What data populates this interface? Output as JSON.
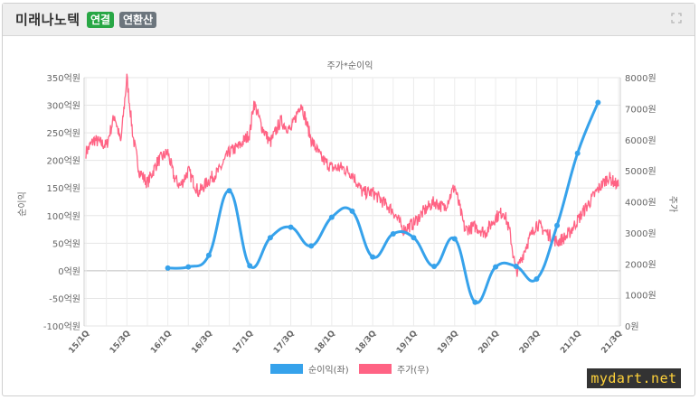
{
  "header": {
    "company": "미래나노텍",
    "badge_consolidated": "연결",
    "badge_consolidated_color": "#28a745",
    "badge_converted": "연환산",
    "badge_converted_color": "#6c757d",
    "expand_icon": "expand-icon"
  },
  "watermark": "mydart.net",
  "chart_data": {
    "type": "line",
    "title": "주가*순이익",
    "y_left_label": "순이익",
    "y_right_label": "주가",
    "y_left_ticks": [
      "350억원",
      "300억원",
      "250억원",
      "200억원",
      "150억원",
      "100억원",
      "50억원",
      "0억원",
      "-50억원",
      "-100억원"
    ],
    "y_right_ticks": [
      "8000원",
      "7000원",
      "6000원",
      "5000원",
      "4000원",
      "3000원",
      "2000원",
      "1000원",
      "0원"
    ],
    "ylim_left": [
      -100,
      350
    ],
    "ylim_right": [
      0,
      8000
    ],
    "x_ticks": [
      "15/1Q",
      "15/3Q",
      "16/1Q",
      "16/3Q",
      "17/1Q",
      "17/3Q",
      "18/1Q",
      "18/3Q",
      "19/1Q",
      "19/3Q",
      "20/1Q",
      "20/3Q",
      "21/1Q",
      "21/3Q"
    ],
    "grid": true,
    "legend_position": "bottom",
    "series": [
      {
        "name": "순이익(좌)",
        "axis": "left",
        "color": "#36a2eb",
        "x": [
          "16/1Q",
          "16/2Q",
          "16/3Q",
          "16/4Q",
          "17/1Q",
          "17/2Q",
          "17/3Q",
          "17/4Q",
          "18/1Q",
          "18/2Q",
          "18/3Q",
          "18/4Q",
          "19/1Q",
          "19/2Q",
          "19/3Q",
          "19/4Q",
          "20/1Q",
          "20/2Q",
          "20/3Q",
          "20/4Q",
          "21/1Q",
          "21/2Q"
        ],
        "values": [
          5,
          7,
          28,
          145,
          9,
          60,
          79,
          45,
          97,
          108,
          25,
          67,
          60,
          8,
          58,
          -57,
          7,
          8,
          -15,
          82,
          213,
          305
        ]
      },
      {
        "name": "주가(우)",
        "axis": "right",
        "color": "#ff6384",
        "keypoints": [
          [
            "15/1Q",
            5600
          ],
          [
            "15/1.4Q",
            6000
          ],
          [
            "15/2Q",
            5800
          ],
          [
            "15/2.4Q",
            6800
          ],
          [
            "15/2.7Q",
            5900
          ],
          [
            "15/3Q",
            8000
          ],
          [
            "15/3.3Q",
            6100
          ],
          [
            "15/3.6Q",
            5000
          ],
          [
            "15/4Q",
            4600
          ],
          [
            "15/4.5Q",
            5300
          ],
          [
            "16/1Q",
            5600
          ],
          [
            "16/1.3Q",
            4800
          ],
          [
            "16/1.6Q",
            4500
          ],
          [
            "16/2Q",
            5000
          ],
          [
            "16/2.5Q",
            4300
          ],
          [
            "16/3Q",
            4700
          ],
          [
            "16/3.5Q",
            5000
          ],
          [
            "16/4Q",
            5600
          ],
          [
            "16/4.5Q",
            5800
          ],
          [
            "17/1Q",
            6200
          ],
          [
            "17/1.2Q",
            7200
          ],
          [
            "17/1.6Q",
            6400
          ],
          [
            "17/2Q",
            5900
          ],
          [
            "17/2.5Q",
            6600
          ],
          [
            "17/3Q",
            6300
          ],
          [
            "17/3.5Q",
            7200
          ],
          [
            "17/4Q",
            6000
          ],
          [
            "17/4.5Q",
            5400
          ],
          [
            "18/1Q",
            5100
          ],
          [
            "18/1.5Q",
            5100
          ],
          [
            "18/2Q",
            4900
          ],
          [
            "18/2.5Q",
            4300
          ],
          [
            "18/3Q",
            4300
          ],
          [
            "18/3.5Q",
            4000
          ],
          [
            "18/4Q",
            3700
          ],
          [
            "18/4.5Q",
            3100
          ],
          [
            "19/1Q",
            3300
          ],
          [
            "19/1.5Q",
            3700
          ],
          [
            "19/2Q",
            4000
          ],
          [
            "19/2.5Q",
            3800
          ],
          [
            "19/3Q",
            4500
          ],
          [
            "19/3.5Q",
            3100
          ],
          [
            "19/4Q",
            3200
          ],
          [
            "19/4.5Q",
            3000
          ],
          [
            "20/1Q",
            3500
          ],
          [
            "20/1.4Q",
            3700
          ],
          [
            "20/1.7Q",
            3000
          ],
          [
            "20/2Q",
            1700
          ],
          [
            "20/2.5Q",
            2600
          ],
          [
            "20/3Q",
            3300
          ],
          [
            "20/3.5Q",
            3000
          ],
          [
            "20/4Q",
            2700
          ],
          [
            "20/4.5Q",
            2900
          ],
          [
            "21/1Q",
            3400
          ],
          [
            "21/1.5Q",
            3900
          ],
          [
            "21/2Q",
            4400
          ],
          [
            "21/2.5Q",
            4800
          ],
          [
            "21/3Q",
            4500
          ]
        ]
      }
    ]
  }
}
